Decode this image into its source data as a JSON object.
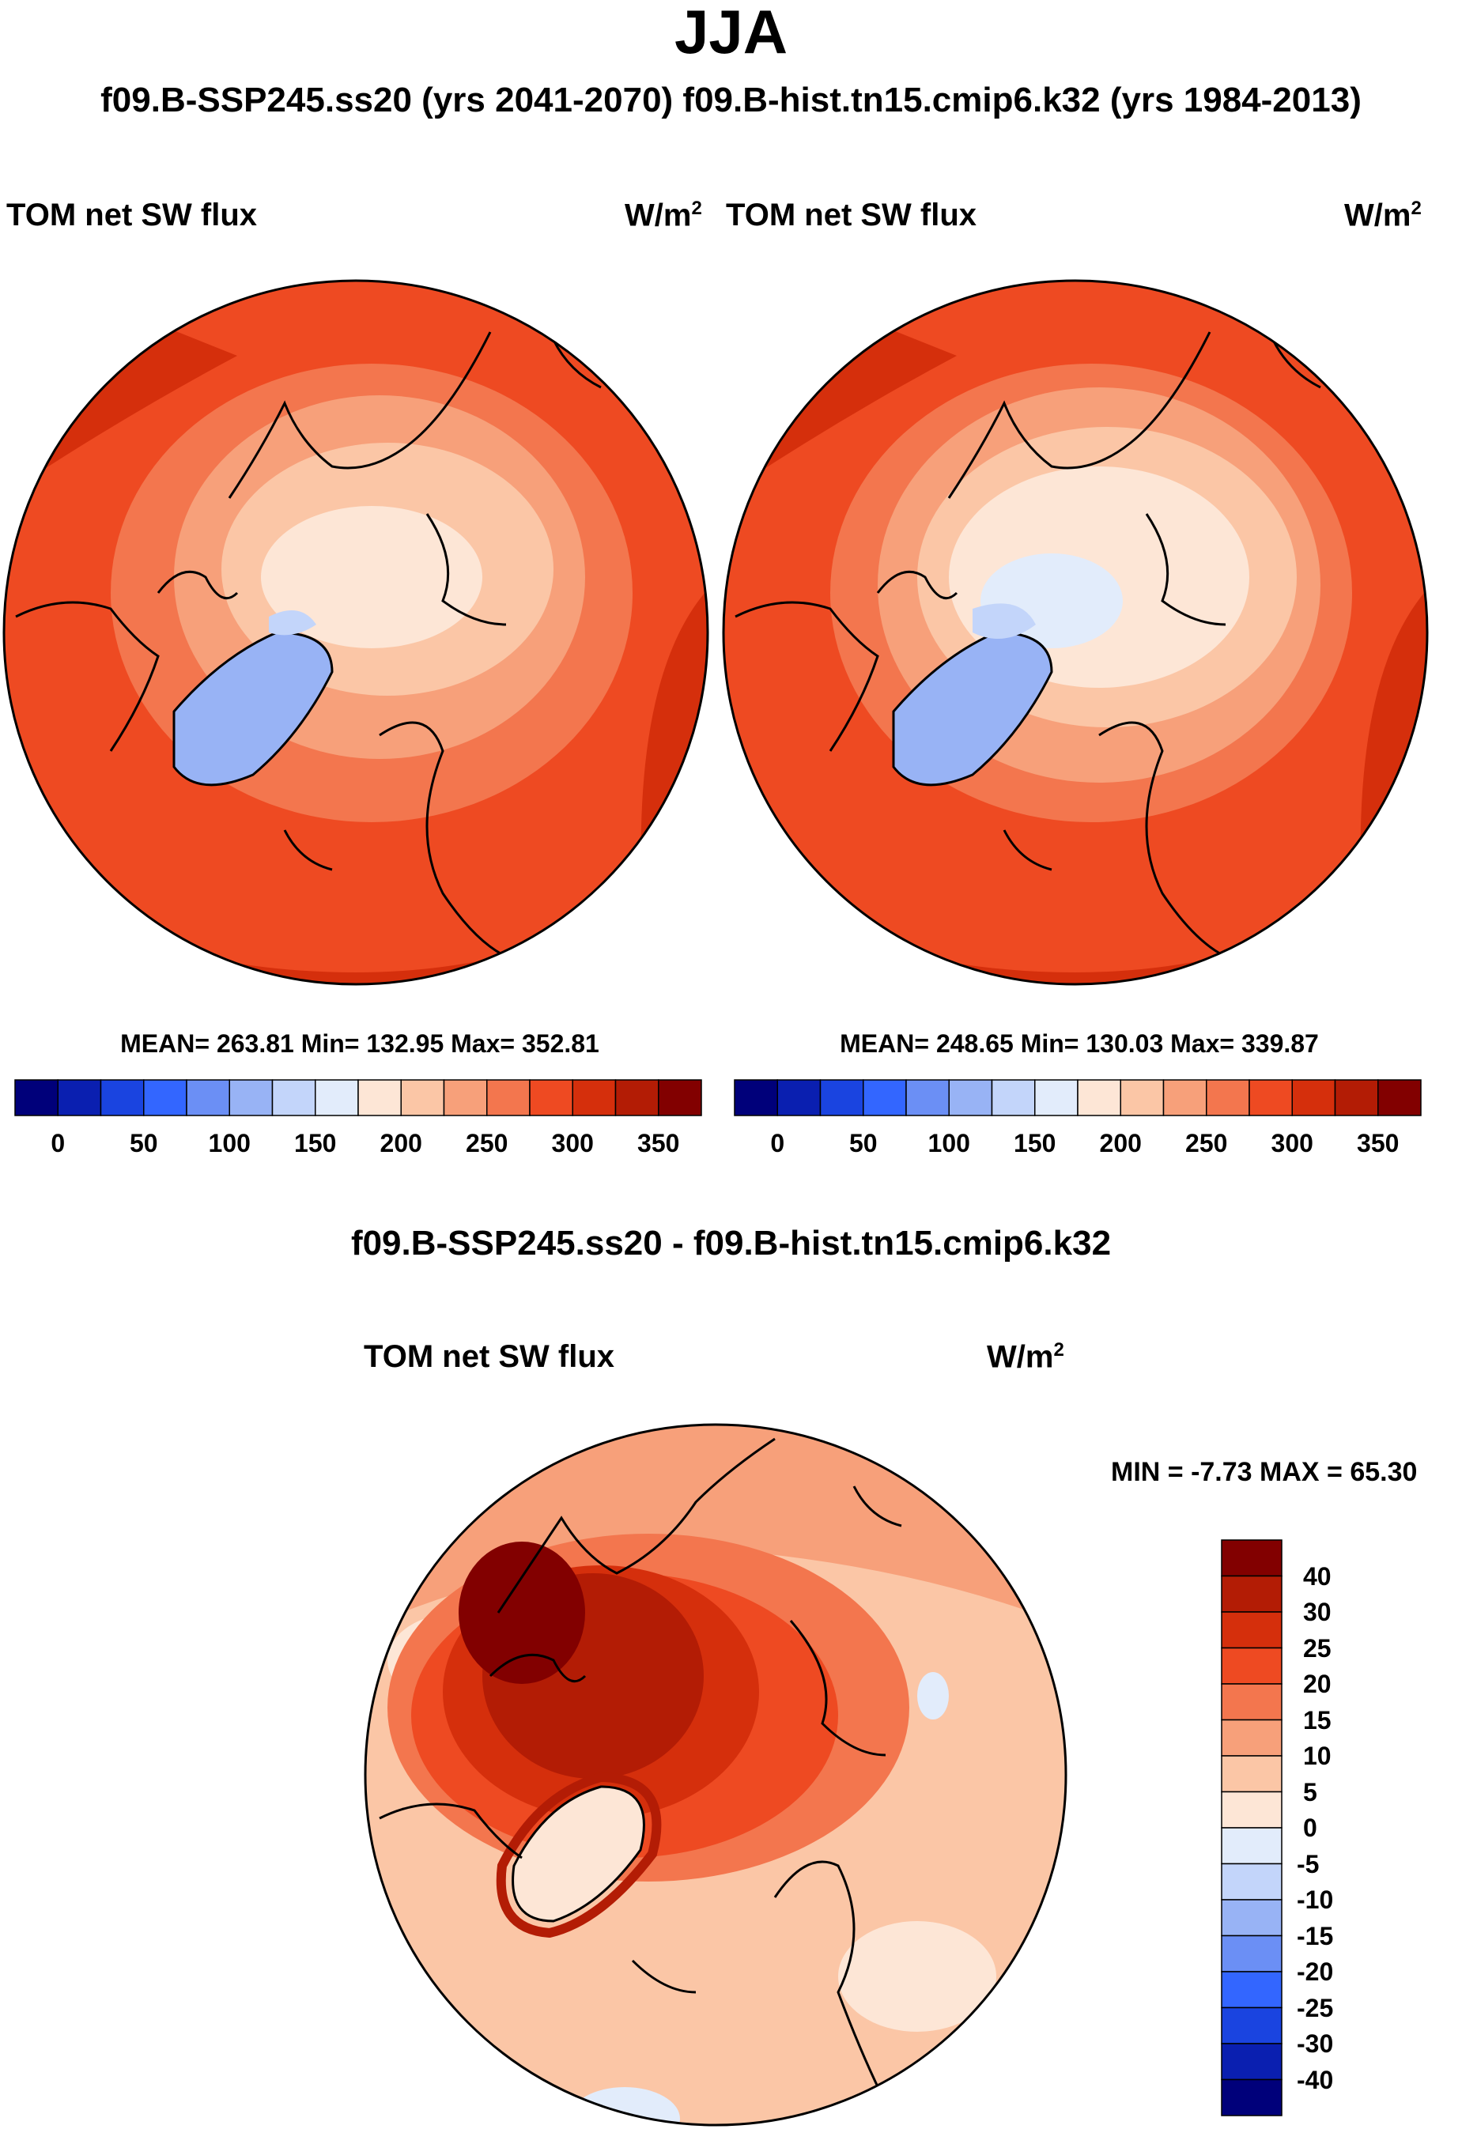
{
  "figure": {
    "title": "JJA",
    "subtitle": "f09.B-SSP245.ss20 (yrs 2041-2070)  f09.B-hist.tn15.cmip6.k32 (yrs 1984-2013)"
  },
  "panels": {
    "left": {
      "variable": "TOM net SW flux",
      "units_base": "W/m",
      "units_exp": "2",
      "stats": "MEAN= 263.81  Min= 132.95  Max= 352.81",
      "mean": 263.81,
      "min": 132.95,
      "max": 352.81
    },
    "right": {
      "variable": "TOM net SW flux",
      "units_base": "W/m",
      "units_exp": "2",
      "stats": "MEAN= 248.65  Min= 130.03  Max= 339.87",
      "mean": 248.65,
      "min": 130.03,
      "max": 339.87
    },
    "diff": {
      "title": "f09.B-SSP245.ss20 - f09.B-hist.tn15.cmip6.k32",
      "variable": "TOM net SW flux",
      "units_base": "W/m",
      "units_exp": "2",
      "stats": "MIN =  -7.73 MAX =  65.30",
      "min": -7.73,
      "max": 65.3
    }
  },
  "colorbar_abs": {
    "colors": [
      "#00007a",
      "#0a1fb0",
      "#1a44e0",
      "#3366ff",
      "#6b8ff5",
      "#98b3f5",
      "#c3d5fa",
      "#e2ecfb",
      "#fde6d6",
      "#fbc6a6",
      "#f7a07a",
      "#f3764e",
      "#ee4a22",
      "#d52f0c",
      "#b31c05",
      "#820000"
    ],
    "tick_labels": [
      "0",
      "50",
      "100",
      "150",
      "200",
      "250",
      "300",
      "350"
    ]
  },
  "colorbar_diff": {
    "colors": [
      "#820000",
      "#b31c05",
      "#d52f0c",
      "#ee4a22",
      "#f3764e",
      "#f7a07a",
      "#fbc6a6",
      "#fde6d6",
      "#e2ecfb",
      "#c3d5fa",
      "#98b3f5",
      "#6b8ff5",
      "#3366ff",
      "#1a44e0",
      "#0a1fb0",
      "#00007a"
    ],
    "tick_labels": [
      "40",
      "30",
      "25",
      "20",
      "15",
      "10",
      "5",
      "0",
      "-5",
      "-10",
      "-15",
      "-20",
      "-25",
      "-30",
      "-40"
    ]
  }
}
